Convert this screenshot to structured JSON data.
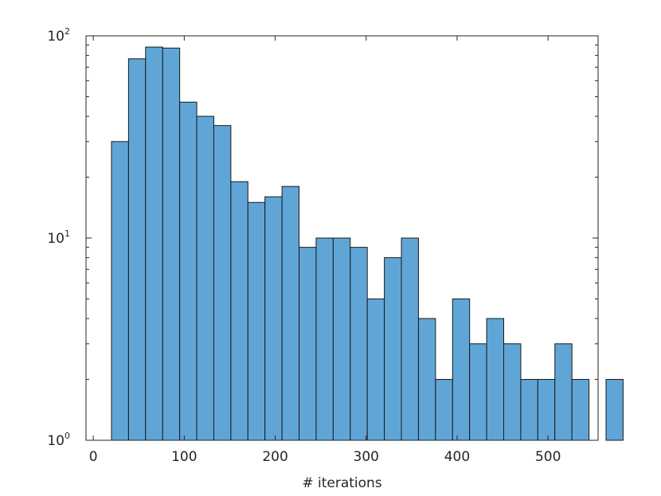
{
  "chart_data": {
    "type": "bar",
    "title": "",
    "xlabel": "# iterations",
    "ylabel": "",
    "yscale": "log",
    "xlim": [
      -8,
      555
    ],
    "ylim": [
      1,
      100
    ],
    "bin_width": 18.75,
    "bins": [
      {
        "x0": 20.0,
        "x1": 38.75,
        "count": 30
      },
      {
        "x0": 38.75,
        "x1": 57.5,
        "count": 77
      },
      {
        "x0": 57.5,
        "x1": 76.25,
        "count": 88
      },
      {
        "x0": 76.25,
        "x1": 95.0,
        "count": 87
      },
      {
        "x0": 95.0,
        "x1": 113.75,
        "count": 47
      },
      {
        "x0": 113.75,
        "x1": 132.5,
        "count": 40
      },
      {
        "x0": 132.5,
        "x1": 151.25,
        "count": 36
      },
      {
        "x0": 151.25,
        "x1": 170.0,
        "count": 19
      },
      {
        "x0": 170.0,
        "x1": 188.75,
        "count": 15
      },
      {
        "x0": 188.75,
        "x1": 207.5,
        "count": 16
      },
      {
        "x0": 207.5,
        "x1": 226.25,
        "count": 18
      },
      {
        "x0": 226.25,
        "x1": 245.0,
        "count": 9
      },
      {
        "x0": 245.0,
        "x1": 263.75,
        "count": 10
      },
      {
        "x0": 263.75,
        "x1": 282.5,
        "count": 10
      },
      {
        "x0": 282.5,
        "x1": 301.25,
        "count": 9
      },
      {
        "x0": 301.25,
        "x1": 320.0,
        "count": 5
      },
      {
        "x0": 320.0,
        "x1": 338.75,
        "count": 8
      },
      {
        "x0": 338.75,
        "x1": 357.5,
        "count": 10
      },
      {
        "x0": 357.5,
        "x1": 376.25,
        "count": 4
      },
      {
        "x0": 376.25,
        "x1": 395.0,
        "count": 2
      },
      {
        "x0": 395.0,
        "x1": 413.75,
        "count": 5
      },
      {
        "x0": 413.75,
        "x1": 432.5,
        "count": 3
      },
      {
        "x0": 432.5,
        "x1": 451.25,
        "count": 4
      },
      {
        "x0": 451.25,
        "x1": 470.0,
        "count": 3
      },
      {
        "x0": 470.0,
        "x1": 488.75,
        "count": 2
      },
      {
        "x0": 488.75,
        "x1": 507.5,
        "count": 2
      },
      {
        "x0": 507.5,
        "x1": 526.25,
        "count": 3
      },
      {
        "x0": 526.25,
        "x1": 545.0,
        "count": 2
      },
      {
        "x0": 545.0,
        "x1": 563.75,
        "count": 0
      },
      {
        "x0": 563.75,
        "x1": 582.5,
        "count": 2
      }
    ],
    "x_ticks": [
      0,
      100,
      200,
      300,
      400,
      500
    ],
    "x_tick_labels": [
      "0",
      "100",
      "200",
      "300",
      "400",
      "500"
    ],
    "y_ticks": [
      1,
      10,
      100
    ],
    "y_tick_bases": [
      "10",
      "10",
      "10"
    ],
    "y_tick_exponents": [
      "0",
      "1",
      "2"
    ],
    "grid": false,
    "legend": "none",
    "colors": {
      "bar_fill": "#5fa6d6",
      "bar_edge": "#1a1a1a",
      "axis": "#262626",
      "background": "#ffffff"
    }
  }
}
